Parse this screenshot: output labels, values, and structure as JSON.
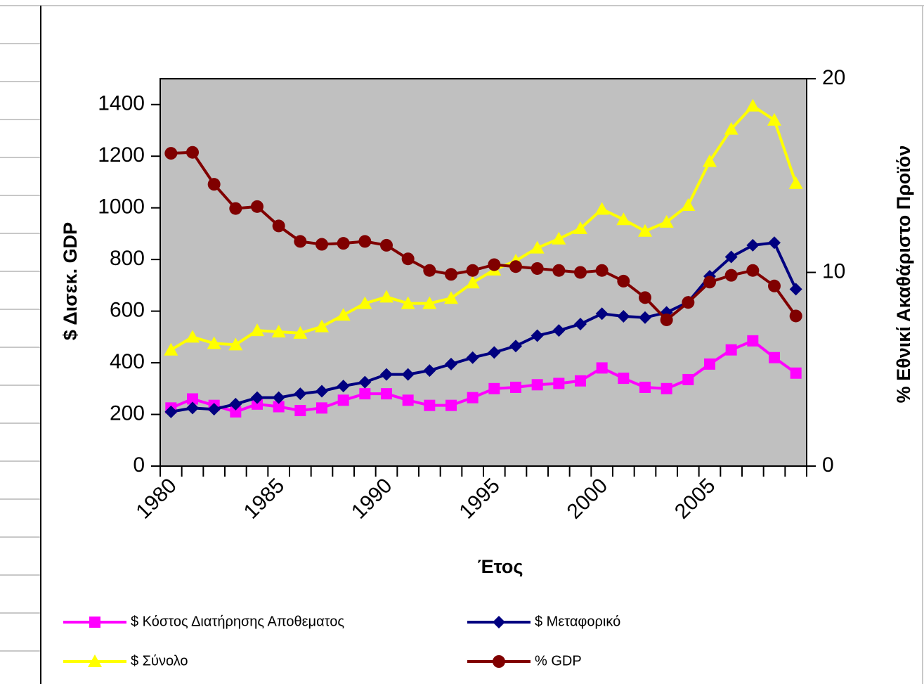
{
  "chart_data": {
    "type": "line",
    "x_title": "Έτος",
    "y_title": "$ Δισεκ. GDP",
    "y2_title": "% Εθνικί Ακαθάριστο Προϊόν",
    "categories": [
      1980,
      null,
      null,
      null,
      null,
      1985,
      null,
      null,
      null,
      null,
      1990,
      null,
      null,
      null,
      null,
      1995,
      null,
      null,
      null,
      null,
      2000,
      null,
      null,
      null,
      null,
      2005,
      null,
      null,
      null,
      null
    ],
    "ylim": [
      0,
      1500
    ],
    "yticks": [
      0,
      200,
      400,
      600,
      800,
      1000,
      1200,
      1400
    ],
    "y2lim": [
      0,
      20
    ],
    "y2ticks": [
      0,
      10,
      20
    ],
    "plot_background": "#c0c0c0",
    "legend": "bottom",
    "series": [
      {
        "name": "$ Κόστος Διατήρησης Αποθεματος",
        "color": "#ff00ff",
        "marker": "square",
        "values": [
          225,
          260,
          235,
          210,
          240,
          230,
          215,
          225,
          255,
          280,
          280,
          255,
          235,
          235,
          265,
          300,
          305,
          315,
          320,
          330,
          380,
          340,
          305,
          300,
          335,
          395,
          450,
          485,
          420,
          360
        ]
      },
      {
        "name": "$ Μεταφορικό",
        "color": "#000080",
        "marker": "diamond",
        "values": [
          210,
          225,
          220,
          240,
          265,
          265,
          280,
          290,
          310,
          325,
          355,
          355,
          370,
          395,
          420,
          440,
          465,
          505,
          525,
          550,
          590,
          580,
          575,
          595,
          635,
          735,
          810,
          855,
          865,
          685
        ]
      },
      {
        "name": "$ Σύνολο",
        "color": "#ffff00",
        "marker": "triangle",
        "values": [
          450,
          500,
          475,
          470,
          525,
          520,
          515,
          540,
          585,
          630,
          655,
          630,
          630,
          650,
          710,
          760,
          795,
          845,
          880,
          920,
          995,
          955,
          910,
          945,
          1010,
          1180,
          1305,
          1395,
          1340,
          1095
        ]
      },
      {
        "name": "% GDP",
        "color": "#800000",
        "marker": "circle",
        "axis": "y2",
        "values": [
          16.15,
          16.2,
          14.55,
          13.3,
          13.4,
          12.4,
          11.6,
          11.45,
          11.5,
          11.6,
          11.4,
          10.7,
          10.1,
          9.9,
          10.1,
          10.4,
          10.3,
          10.2,
          10.1,
          10.0,
          10.1,
          9.55,
          8.7,
          7.55,
          8.45,
          9.5,
          9.85,
          10.1,
          9.3,
          7.75
        ]
      }
    ]
  }
}
